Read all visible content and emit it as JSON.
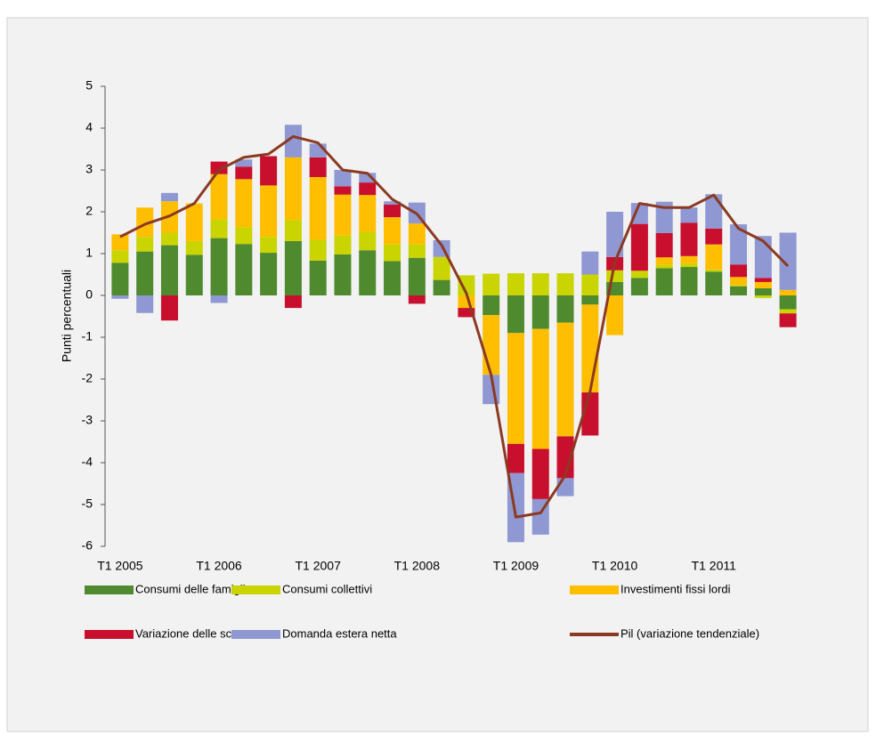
{
  "chart_data": {
    "type": "bar",
    "stacked": true,
    "y_label": "Punti percentuali",
    "categories": [
      "T1 2005",
      null,
      null,
      null,
      "T1 2006",
      null,
      null,
      null,
      "T1 2007",
      null,
      null,
      null,
      "T1 2008",
      null,
      null,
      null,
      "T1 2009",
      null,
      null,
      null,
      "T1 2010",
      null,
      null,
      null,
      "T1 2011",
      null,
      null,
      null
    ],
    "ylim": [
      -6,
      5
    ],
    "yticks": [
      -6,
      -5,
      -4,
      -3,
      -2,
      -1,
      0,
      1,
      2,
      3,
      4,
      5
    ],
    "series": [
      {
        "name": "Consumi delle famiglie",
        "color": "#4f8a2f",
        "values": [
          0.78,
          1.05,
          1.2,
          0.97,
          1.37,
          1.23,
          1.02,
          1.3,
          0.83,
          0.98,
          1.08,
          0.82,
          0.9,
          0.37,
          0,
          -0.47,
          -0.9,
          -0.8,
          -0.65,
          -0.22,
          0.32,
          0.42,
          0.65,
          0.68,
          0.57,
          0.22,
          0.17,
          -0.33
        ]
      },
      {
        "name": "Consumi collettivi",
        "color": "#c9d400",
        "values": [
          0.3,
          0.35,
          0.3,
          0.33,
          0.45,
          0.4,
          0.38,
          0.5,
          0.5,
          0.45,
          0.44,
          0.4,
          0.32,
          0.55,
          0.48,
          0.52,
          0.53,
          0.53,
          0.53,
          0.5,
          0.28,
          0.17,
          0.08,
          0.08,
          0.05,
          0.02,
          -0.06,
          -0.1
        ]
      },
      {
        "name": "Investimenti fissi lordi",
        "color": "#ffbf00",
        "values": [
          0.38,
          0.7,
          0.75,
          0.9,
          1.08,
          1.15,
          1.23,
          1.5,
          1.5,
          0.98,
          0.88,
          0.65,
          0.5,
          0,
          -0.3,
          -1.43,
          -2.65,
          -2.87,
          -2.72,
          -2.1,
          -0.95,
          0,
          0.18,
          0.18,
          0.6,
          0.2,
          0.15,
          0.13
        ]
      },
      {
        "name": "Variazione delle scorte",
        "color": "#c8102e",
        "values": [
          0,
          0,
          -0.6,
          0,
          0.3,
          0.3,
          0.7,
          -0.3,
          0.47,
          0.2,
          0.3,
          0.3,
          -0.2,
          0,
          -0.22,
          0,
          -0.7,
          -1.2,
          -1.0,
          -1.03,
          0.32,
          1.12,
          0.58,
          0.8,
          0.38,
          0.3,
          0.1,
          -0.33
        ]
      },
      {
        "name": "Domanda estera netta",
        "color": "#8f98d2",
        "values": [
          -0.08,
          -0.42,
          0.2,
          0,
          -0.18,
          0.17,
          0,
          0.78,
          0.33,
          0.39,
          0.23,
          0.08,
          0.5,
          0.4,
          0,
          -0.7,
          -1.65,
          -0.85,
          -0.43,
          0.55,
          1.08,
          0.5,
          0.75,
          0.36,
          0.82,
          0.96,
          1.0,
          1.37
        ]
      },
      {
        "name": "Pil (variazione tendenziale)",
        "type": "line",
        "color": "#8b3a22",
        "values": [
          1.4,
          1.7,
          1.9,
          2.2,
          3.0,
          3.3,
          3.38,
          3.8,
          3.65,
          3.0,
          2.92,
          2.3,
          1.95,
          1.2,
          0.05,
          -1.9,
          -5.3,
          -5.2,
          -4.3,
          -2.3,
          0.8,
          2.2,
          2.1,
          2.1,
          2.4,
          1.6,
          1.3,
          0.7
        ]
      }
    ]
  }
}
